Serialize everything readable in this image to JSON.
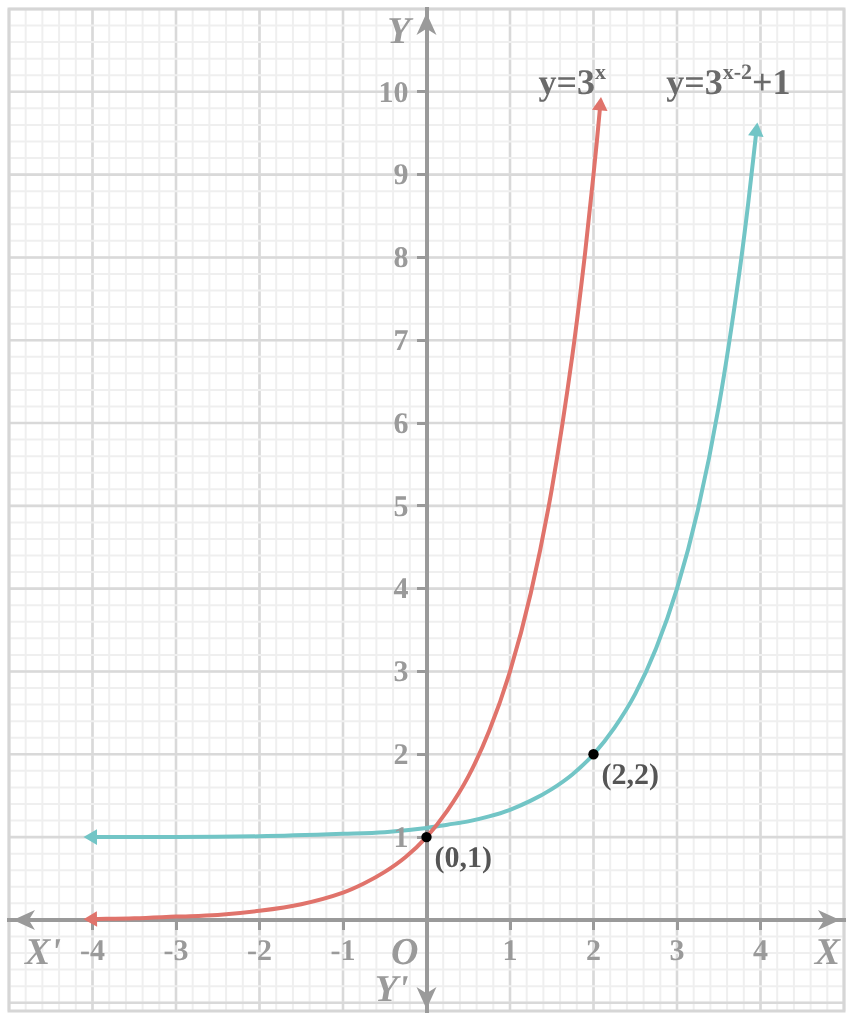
{
  "chart_data": {
    "type": "line",
    "xlabel": "X",
    "ylabel": "Y",
    "xlim": [
      -5,
      5
    ],
    "ylim": [
      -1.1,
      11
    ],
    "xticks": [
      -4,
      -3,
      -2,
      -1,
      1,
      2,
      3,
      4
    ],
    "yticks": [
      1,
      2,
      3,
      4,
      5,
      6,
      7,
      8,
      9,
      10
    ],
    "grid": true,
    "series": [
      {
        "name": "y=3$^{x}$",
        "color": "#e0736b",
        "x": [
          -4,
          -3.5,
          -3,
          -2.5,
          -2,
          -1.5,
          -1,
          -0.75,
          -0.5,
          -0.25,
          0,
          0.25,
          0.5,
          0.75,
          1,
          1.25,
          1.5,
          1.75,
          1.9,
          2,
          2.04,
          2.08
        ],
        "values": [
          0.01,
          0.02,
          0.04,
          0.06,
          0.11,
          0.19,
          0.33,
          0.44,
          0.58,
          0.76,
          1,
          1.32,
          1.73,
          2.28,
          3,
          3.95,
          5.2,
          6.84,
          8.06,
          9,
          9.4,
          9.83
        ]
      },
      {
        "name": "y=3$^{x-2}$+1",
        "color": "#72c5c6",
        "x": [
          -4,
          -3,
          -2,
          -1,
          -0.5,
          0,
          0.25,
          0.5,
          0.75,
          1,
          1.25,
          1.5,
          1.75,
          2,
          2.25,
          2.5,
          2.75,
          3,
          3.25,
          3.5,
          3.75,
          3.85,
          3.95
        ],
        "values": [
          1,
          1,
          1.01,
          1.04,
          1.06,
          1.11,
          1.15,
          1.19,
          1.25,
          1.33,
          1.44,
          1.58,
          1.76,
          2,
          2.32,
          2.73,
          3.28,
          4,
          4.95,
          6.2,
          7.84,
          8.63,
          9.52
        ]
      },
      {
        "type": "scatter",
        "color": "#000000",
        "marker": "circle",
        "x": [
          0,
          2
        ],
        "values": [
          1,
          2
        ]
      }
    ],
    "annotations": [
      {
        "text": "(0,1)",
        "x": 0,
        "y": 1
      },
      {
        "text": "(2,2)",
        "x": 2,
        "y": 2
      },
      "X'",
      "O",
      "Y'"
    ]
  }
}
